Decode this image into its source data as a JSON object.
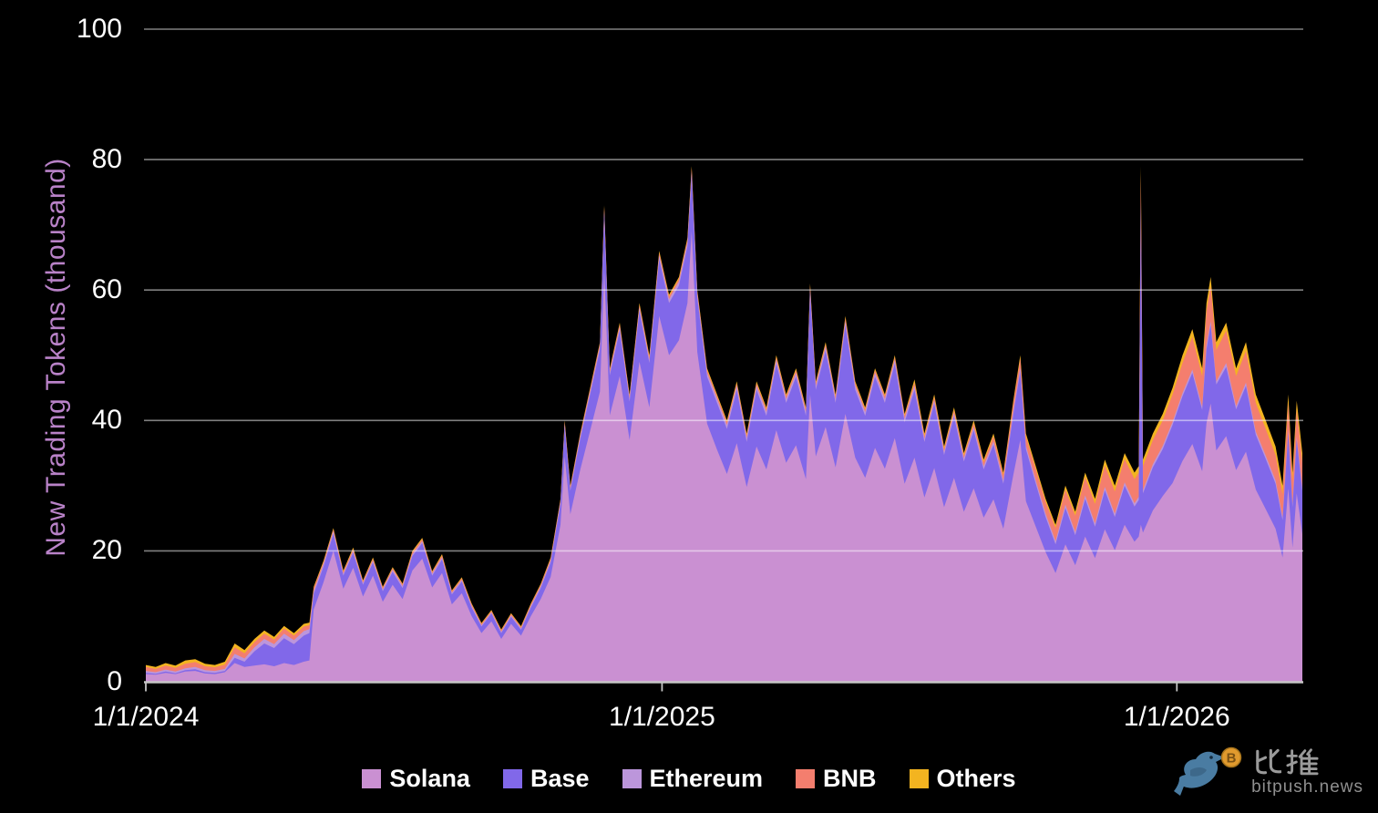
{
  "chart_data": {
    "type": "area",
    "stacked": true,
    "title": "",
    "xlabel": "",
    "ylabel": "New Trading Tokens (thousand)",
    "ylim": [
      0,
      100
    ],
    "grid": true,
    "legend_position": "bottom",
    "yticks": [
      0,
      20,
      40,
      60,
      80,
      100
    ],
    "ytick_labels": [
      "0",
      "20",
      "40",
      "60",
      "80",
      "100"
    ],
    "xticks": [
      {
        "day": 0,
        "label": "1/1/2024"
      },
      {
        "day": 366,
        "label": "1/1/2025"
      },
      {
        "day": 731,
        "label": "1/1/2026"
      }
    ],
    "x_domain_days": [
      0,
      820
    ],
    "series": [
      {
        "name": "Solana",
        "color": "#CA90D2"
      },
      {
        "name": "Base",
        "color": "#8168E9"
      },
      {
        "name": "Ethereum",
        "color": "#BC96DB"
      },
      {
        "name": "BNB",
        "color": "#F47E6E"
      },
      {
        "name": "Others",
        "color": "#F3B420"
      }
    ],
    "point_format": [
      "day",
      "Solana",
      "Base",
      "Ethereum",
      "BNB",
      "Others"
    ],
    "points": [
      [
        0,
        1.1,
        0.2,
        0.3,
        0.6,
        0.3
      ],
      [
        7,
        1.0,
        0.15,
        0.25,
        0.5,
        0.3
      ],
      [
        14,
        1.3,
        0.2,
        0.3,
        0.6,
        0.4
      ],
      [
        21,
        1.1,
        0.15,
        0.25,
        0.55,
        0.35
      ],
      [
        28,
        1.5,
        0.2,
        0.3,
        0.7,
        0.5
      ],
      [
        35,
        1.6,
        0.25,
        0.35,
        0.75,
        0.45
      ],
      [
        42,
        1.2,
        0.2,
        0.3,
        0.6,
        0.4
      ],
      [
        49,
        1.1,
        0.2,
        0.3,
        0.55,
        0.35
      ],
      [
        56,
        1.4,
        0.2,
        0.3,
        0.65,
        0.45
      ],
      [
        63,
        2.8,
        0.8,
        0.6,
        1.0,
        0.6
      ],
      [
        70,
        2.2,
        0.8,
        0.5,
        0.8,
        0.5
      ],
      [
        77,
        2.4,
        2.2,
        0.6,
        0.8,
        0.5
      ],
      [
        84,
        2.6,
        3.2,
        0.7,
        0.8,
        0.5
      ],
      [
        91,
        2.3,
        2.8,
        0.6,
        0.7,
        0.4
      ],
      [
        98,
        2.8,
        3.8,
        0.7,
        0.8,
        0.4
      ],
      [
        105,
        2.5,
        3.2,
        0.6,
        0.7,
        0.4
      ],
      [
        112,
        3.0,
        4.0,
        0.7,
        0.7,
        0.4
      ],
      [
        116,
        3.2,
        4.2,
        0.6,
        0.6,
        0.4
      ],
      [
        119,
        11.0,
        2.4,
        0.4,
        0.5,
        0.2
      ],
      [
        126,
        15.2,
        2.4,
        0.4,
        0.3,
        0.2
      ],
      [
        133,
        20.0,
        2.6,
        0.4,
        0.3,
        0.2
      ],
      [
        140,
        14.2,
        2.0,
        0.3,
        0.3,
        0.2
      ],
      [
        147,
        17.4,
        2.3,
        0.3,
        0.3,
        0.2
      ],
      [
        154,
        13.0,
        1.8,
        0.3,
        0.25,
        0.15
      ],
      [
        161,
        16.2,
        2.0,
        0.3,
        0.3,
        0.2
      ],
      [
        168,
        12.2,
        1.6,
        0.3,
        0.25,
        0.15
      ],
      [
        175,
        14.8,
        2.0,
        0.3,
        0.25,
        0.15
      ],
      [
        182,
        12.6,
        1.7,
        0.3,
        0.25,
        0.15
      ],
      [
        189,
        17.0,
        2.2,
        0.3,
        0.3,
        0.2
      ],
      [
        196,
        18.8,
        2.4,
        0.3,
        0.3,
        0.2
      ],
      [
        203,
        14.4,
        1.8,
        0.3,
        0.25,
        0.15
      ],
      [
        210,
        16.6,
        2.1,
        0.3,
        0.3,
        0.2
      ],
      [
        217,
        11.8,
        1.5,
        0.25,
        0.25,
        0.15
      ],
      [
        224,
        13.5,
        1.8,
        0.25,
        0.25,
        0.15
      ],
      [
        231,
        10.0,
        1.3,
        0.25,
        0.25,
        0.15
      ],
      [
        238,
        7.4,
        1.0,
        0.2,
        0.2,
        0.15
      ],
      [
        245,
        9.2,
        1.2,
        0.2,
        0.2,
        0.15
      ],
      [
        252,
        6.5,
        0.9,
        0.2,
        0.2,
        0.15
      ],
      [
        259,
        8.8,
        1.1,
        0.2,
        0.2,
        0.15
      ],
      [
        266,
        7.0,
        0.9,
        0.2,
        0.2,
        0.15
      ],
      [
        273,
        10.0,
        1.3,
        0.25,
        0.25,
        0.15
      ],
      [
        280,
        12.6,
        1.7,
        0.25,
        0.25,
        0.15
      ],
      [
        287,
        16.0,
        2.2,
        0.3,
        0.3,
        0.2
      ],
      [
        294,
        24.0,
        3.2,
        0.3,
        0.3,
        0.2
      ],
      [
        297,
        34.5,
        4.6,
        0.4,
        0.3,
        0.2
      ],
      [
        301,
        25.6,
        3.6,
        0.3,
        0.3,
        0.2
      ],
      [
        308,
        32.4,
        4.7,
        0.4,
        0.3,
        0.2
      ],
      [
        315,
        38.4,
        5.6,
        0.4,
        0.4,
        0.2
      ],
      [
        322,
        44.4,
        6.5,
        0.5,
        0.4,
        0.2
      ],
      [
        325,
        63.0,
        8.8,
        0.5,
        0.4,
        0.3
      ],
      [
        329,
        40.8,
        6.1,
        0.5,
        0.4,
        0.2
      ],
      [
        336,
        46.8,
        7.0,
        0.5,
        0.4,
        0.3
      ],
      [
        343,
        37.0,
        5.9,
        0.5,
        0.4,
        0.2
      ],
      [
        350,
        49.0,
        7.8,
        0.5,
        0.4,
        0.3
      ],
      [
        357,
        42.0,
        6.8,
        0.5,
        0.4,
        0.3
      ],
      [
        364,
        56.0,
        8.7,
        0.6,
        0.4,
        0.3
      ],
      [
        371,
        50.0,
        8.0,
        0.6,
        0.4,
        0.3
      ],
      [
        378,
        52.3,
        8.4,
        0.6,
        0.4,
        0.3
      ],
      [
        384,
        58.0,
        8.7,
        0.6,
        0.4,
        0.3
      ],
      [
        387,
        69.0,
        8.6,
        0.6,
        0.5,
        0.3
      ],
      [
        391,
        50.5,
        8.2,
        0.6,
        0.4,
        0.3
      ],
      [
        398,
        39.5,
        7.2,
        0.6,
        0.4,
        0.3
      ],
      [
        405,
        35.5,
        7.2,
        0.6,
        0.4,
        0.3
      ],
      [
        412,
        31.8,
        6.9,
        0.6,
        0.4,
        0.3
      ],
      [
        419,
        36.5,
        8.2,
        0.6,
        0.4,
        0.3
      ],
      [
        426,
        29.8,
        6.9,
        0.6,
        0.4,
        0.3
      ],
      [
        433,
        36.0,
        8.7,
        0.6,
        0.4,
        0.3
      ],
      [
        440,
        32.5,
        8.2,
        0.6,
        0.4,
        0.3
      ],
      [
        447,
        38.5,
        10.2,
        0.6,
        0.4,
        0.3
      ],
      [
        454,
        33.5,
        9.2,
        0.6,
        0.4,
        0.3
      ],
      [
        461,
        36.2,
        10.5,
        0.6,
        0.4,
        0.3
      ],
      [
        468,
        31.0,
        9.7,
        0.6,
        0.4,
        0.3
      ],
      [
        471,
        44.0,
        15.6,
        0.6,
        0.5,
        0.3
      ],
      [
        475,
        34.5,
        10.2,
        0.6,
        0.4,
        0.3
      ],
      [
        482,
        39.0,
        11.7,
        0.6,
        0.4,
        0.3
      ],
      [
        489,
        32.8,
        9.9,
        0.6,
        0.4,
        0.3
      ],
      [
        496,
        41.0,
        13.6,
        0.6,
        0.5,
        0.3
      ],
      [
        503,
        34.3,
        10.4,
        0.6,
        0.4,
        0.3
      ],
      [
        510,
        31.2,
        9.5,
        0.6,
        0.4,
        0.3
      ],
      [
        517,
        35.8,
        10.9,
        0.6,
        0.4,
        0.3
      ],
      [
        524,
        32.6,
        10.1,
        0.6,
        0.4,
        0.3
      ],
      [
        531,
        37.3,
        11.4,
        0.6,
        0.4,
        0.3
      ],
      [
        538,
        30.3,
        9.4,
        0.6,
        0.4,
        0.3
      ],
      [
        545,
        34.3,
        10.4,
        0.6,
        0.5,
        0.5
      ],
      [
        552,
        28.2,
        8.5,
        0.5,
        0.4,
        0.4
      ],
      [
        559,
        32.7,
        9.9,
        0.5,
        0.5,
        0.4
      ],
      [
        566,
        26.7,
        8.0,
        0.5,
        0.4,
        0.4
      ],
      [
        573,
        31.2,
        9.4,
        0.5,
        0.5,
        0.4
      ],
      [
        580,
        26.0,
        7.7,
        0.5,
        0.4,
        0.4
      ],
      [
        587,
        29.6,
        8.9,
        0.5,
        0.6,
        0.4
      ],
      [
        594,
        25.1,
        7.4,
        0.5,
        0.6,
        0.4
      ],
      [
        601,
        27.9,
        8.4,
        0.5,
        0.8,
        0.4
      ],
      [
        608,
        23.4,
        6.9,
        0.5,
        0.8,
        0.4
      ],
      [
        615,
        31.6,
        9.3,
        0.5,
        1.2,
        0.4
      ],
      [
        620,
        37.0,
        10.6,
        0.5,
        1.4,
        0.5
      ],
      [
        624,
        27.6,
        8.0,
        0.5,
        1.4,
        0.5
      ],
      [
        631,
        23.7,
        6.6,
        0.5,
        1.7,
        0.5
      ],
      [
        638,
        19.8,
        5.4,
        0.5,
        1.8,
        0.5
      ],
      [
        645,
        16.6,
        4.4,
        0.5,
        2.0,
        0.5
      ],
      [
        652,
        21.0,
        5.6,
        0.5,
        2.3,
        0.6
      ],
      [
        659,
        17.8,
        4.6,
        0.5,
        2.5,
        0.6
      ],
      [
        666,
        22.2,
        5.8,
        0.5,
        2.8,
        0.7
      ],
      [
        673,
        18.9,
        4.8,
        0.5,
        3.0,
        0.8
      ],
      [
        680,
        23.3,
        6.0,
        0.5,
        3.3,
        0.9
      ],
      [
        687,
        20.1,
        5.1,
        0.5,
        3.4,
        0.9
      ],
      [
        694,
        24.0,
        6.0,
        0.5,
        3.6,
        0.9
      ],
      [
        701,
        21.4,
        5.4,
        0.5,
        3.7,
        1.0
      ],
      [
        704,
        22.2,
        5.6,
        0.5,
        3.7,
        1.0
      ],
      [
        705.5,
        24.0,
        49.0,
        0.6,
        4.2,
        1.2
      ],
      [
        707,
        22.8,
        6.0,
        0.5,
        3.7,
        1.0
      ],
      [
        714,
        26.2,
        6.6,
        0.5,
        3.7,
        1.0
      ],
      [
        721,
        28.4,
        7.2,
        0.5,
        3.9,
        1.0
      ],
      [
        728,
        30.4,
        8.9,
        0.5,
        4.2,
        1.0
      ],
      [
        735,
        33.8,
        9.9,
        0.5,
        4.6,
        1.2
      ],
      [
        742,
        36.4,
        10.9,
        0.5,
        5.0,
        1.2
      ],
      [
        749,
        32.2,
        9.4,
        0.5,
        4.7,
        1.2
      ],
      [
        752,
        39.6,
        11.3,
        0.6,
        5.2,
        1.3
      ],
      [
        755,
        42.6,
        12.0,
        0.6,
        5.4,
        1.4
      ],
      [
        759,
        35.4,
        10.1,
        0.5,
        4.8,
        1.2
      ],
      [
        766,
        37.6,
        10.6,
        0.6,
        5.0,
        1.2
      ],
      [
        773,
        32.4,
        9.3,
        0.5,
        4.6,
        1.2
      ],
      [
        780,
        35.2,
        10.1,
        0.5,
        4.9,
        1.3
      ],
      [
        787,
        29.4,
        8.4,
        0.5,
        4.4,
        1.3
      ],
      [
        794,
        26.4,
        7.7,
        0.5,
        4.1,
        1.3
      ],
      [
        801,
        23.4,
        6.9,
        0.5,
        3.9,
        1.3
      ],
      [
        806,
        19.0,
        5.7,
        0.5,
        3.5,
        1.3
      ],
      [
        810,
        29.6,
        8.4,
        0.5,
        4.2,
        1.3
      ],
      [
        813,
        20.5,
        6.2,
        0.5,
        3.5,
        1.3
      ],
      [
        816,
        28.8,
        8.2,
        0.5,
        4.2,
        1.3
      ],
      [
        820,
        22.6,
        6.6,
        0.5,
        3.9,
        1.4
      ]
    ]
  },
  "colors": {
    "background": "#000000",
    "tick_text": "#ffffff",
    "y_title": "#B982C8",
    "gridline": "#8d8d8d",
    "axis_line": "#c6c6c6",
    "watermark_text": "#9a9a9a",
    "watermark_bird": "#4A7CA2",
    "watermark_coin": "#E09A2E"
  },
  "watermark": {
    "cn": "比推",
    "en": "bitpush.news"
  }
}
